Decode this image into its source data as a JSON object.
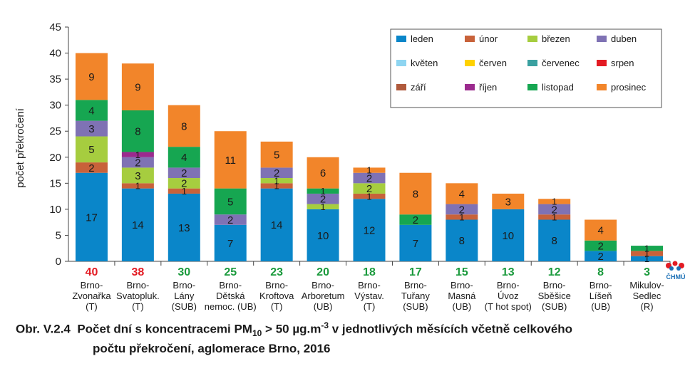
{
  "caption": {
    "label": "Obr. V.2.4",
    "line1_before": "Počet dní s koncentracemi PM",
    "line1_sub": "10",
    "line1_mid": " > 50 µg.m",
    "line1_sup": "-3",
    "line1_after": " v jednotlivých měsících včetně celkového",
    "line2": "počtu překročení, aglomerace Brno, 2016"
  },
  "logo": {
    "text": "ČHMÚ",
    "icon": "chmu-logo-icon"
  },
  "chart_data": {
    "type": "bar",
    "stacked": true,
    "title": "",
    "xlabel": "",
    "ylabel": "počet překročení",
    "ylim": [
      0,
      45
    ],
    "yticks": [
      0,
      5,
      10,
      15,
      20,
      25,
      30,
      35,
      40,
      45
    ],
    "grid": false,
    "legend_position": "top-right",
    "categories": [
      [
        "Brno-",
        "Zvonařka",
        "(T)"
      ],
      [
        "Brno-",
        "Svatopluk.",
        "(T)"
      ],
      [
        "Brno-",
        "Lány",
        "(SUB)"
      ],
      [
        "Brno-",
        "Dětská",
        "nemoc. (UB)"
      ],
      [
        "Brno-",
        "Kroftova",
        "(T)"
      ],
      [
        "Brno-",
        "Arboretum",
        "(UB)"
      ],
      [
        "Brno-",
        "Výstav.",
        "(T)"
      ],
      [
        "Brno-",
        "Tuřany",
        "(SUB)"
      ],
      [
        "Brno-",
        "Masná",
        "(UB)"
      ],
      [
        "Brno-",
        "Úvoz",
        "(T hot spot)"
      ],
      [
        "Brno-",
        "Sběšice",
        "(SUB)"
      ],
      [
        "Brno-",
        "Líšeň",
        "(UB)"
      ],
      [
        "Mikulov-",
        "Sedlec",
        "(R)"
      ]
    ],
    "totals": [
      40,
      38,
      30,
      25,
      23,
      20,
      18,
      17,
      15,
      13,
      12,
      8,
      3
    ],
    "total_colors": [
      "#e31b23",
      "#e31b23",
      "#1a9a3c",
      "#1a9a3c",
      "#1a9a3c",
      "#1a9a3c",
      "#1a9a3c",
      "#1a9a3c",
      "#1a9a3c",
      "#1a9a3c",
      "#1a9a3c",
      "#1a9a3c",
      "#1a9a3c"
    ],
    "series": [
      {
        "name": "leden",
        "color": "#0a86c9",
        "values": [
          17,
          14,
          13,
          7,
          14,
          10,
          12,
          7,
          8,
          10,
          8,
          2,
          1
        ]
      },
      {
        "name": "únor",
        "color": "#c8623a",
        "values": [
          2,
          1,
          1,
          0,
          1,
          0,
          1,
          0,
          1,
          0,
          1,
          0,
          1
        ]
      },
      {
        "name": "březen",
        "color": "#a6cd3f",
        "values": [
          5,
          3,
          2,
          0,
          1,
          1,
          2,
          0,
          0,
          0,
          0,
          0,
          0
        ]
      },
      {
        "name": "duben",
        "color": "#7f72b4",
        "values": [
          3,
          2,
          2,
          2,
          2,
          2,
          2,
          0,
          2,
          0,
          2,
          0,
          0
        ]
      },
      {
        "name": "květen",
        "color": "#8ed5f1",
        "values": [
          0,
          0,
          0,
          0,
          0,
          0,
          0,
          0,
          0,
          0,
          0,
          0,
          0
        ]
      },
      {
        "name": "červen",
        "color": "#ffd200",
        "values": [
          0,
          0,
          0,
          0,
          0,
          0,
          0,
          0,
          0,
          0,
          0,
          0,
          0
        ]
      },
      {
        "name": "červenec",
        "color": "#3aa0a0",
        "values": [
          0,
          0,
          0,
          0,
          0,
          0,
          0,
          0,
          0,
          0,
          0,
          0,
          0
        ]
      },
      {
        "name": "srpen",
        "color": "#e31b23",
        "values": [
          0,
          0,
          0,
          0,
          0,
          0,
          0,
          0,
          0,
          0,
          0,
          0,
          0
        ]
      },
      {
        "name": "září",
        "color": "#b05a3c",
        "values": [
          0,
          0,
          0,
          0,
          0,
          0,
          0,
          0,
          0,
          0,
          0,
          0,
          0
        ]
      },
      {
        "name": "říjen",
        "color": "#9b2a8e",
        "values": [
          0,
          1,
          0,
          0,
          0,
          0,
          0,
          0,
          0,
          0,
          0,
          0,
          0
        ]
      },
      {
        "name": "listopad",
        "color": "#16a651",
        "values": [
          4,
          8,
          4,
          5,
          0,
          1,
          0,
          2,
          0,
          0,
          0,
          2,
          1
        ]
      },
      {
        "name": "prosinec",
        "color": "#f2852a",
        "values": [
          9,
          9,
          8,
          11,
          5,
          6,
          1,
          8,
          4,
          3,
          1,
          4,
          0
        ]
      }
    ]
  }
}
